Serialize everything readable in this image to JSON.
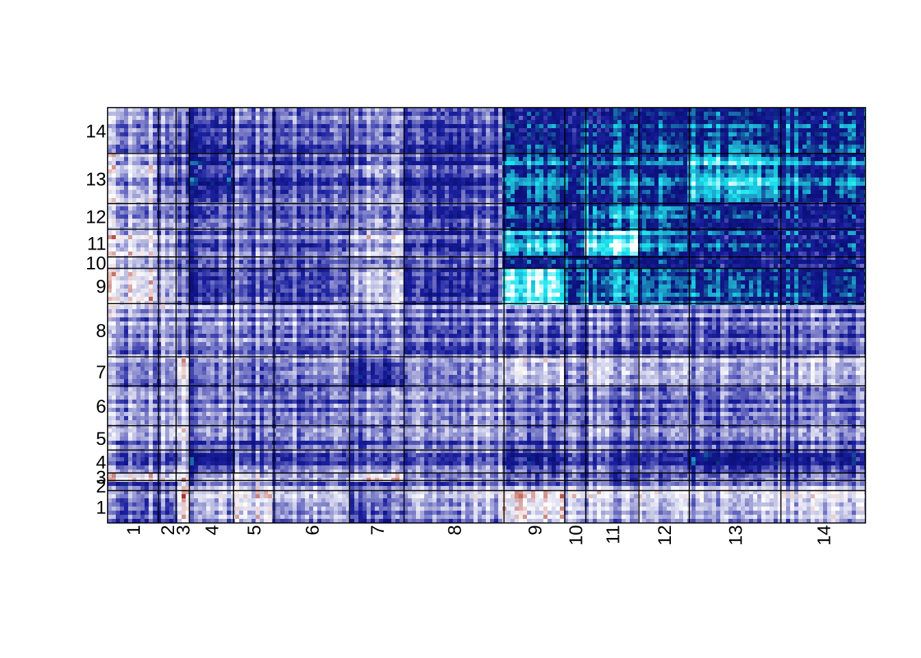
{
  "chart_data": {
    "type": "heatmap",
    "title": "",
    "xlabel": "",
    "ylabel": "",
    "grid": false,
    "legend": "none",
    "column_clusters": [
      "1",
      "2",
      "3",
      "4",
      "5",
      "6",
      "7",
      "8",
      "9",
      "10",
      "11",
      "12",
      "13",
      "14"
    ],
    "row_clusters": [
      "1",
      "2",
      "3",
      "4",
      "5",
      "6",
      "7",
      "8",
      "9",
      "10",
      "11",
      "12",
      "13",
      "14"
    ],
    "cluster_sizes": [
      73,
      25,
      19,
      63,
      58,
      108,
      78,
      143,
      87,
      30,
      76,
      72,
      131,
      121
    ],
    "row_cluster_sizes": [
      48,
      15,
      11,
      34,
      36,
      59,
      43,
      79,
      52,
      17,
      41,
      38,
      74,
      68
    ],
    "colors": {
      "white": "#ffffff",
      "light": "#cfd0ea",
      "mid": "#7072c4",
      "dark": "#1a1f9e",
      "navy": "#0a0f78",
      "teal": "#1fa0c8",
      "cyan": "#19e6f0",
      "red": "#a8322a",
      "border": "#000000"
    },
    "block_means": [
      [
        0.05,
        0.05,
        -0.55,
        -0.15,
        -0.3,
        -0.15,
        0.05,
        -0.15,
        -0.4,
        -0.25,
        -0.2,
        -0.25,
        -0.15,
        -0.2
      ],
      [
        0.1,
        0.1,
        -0.45,
        -0.1,
        -0.2,
        -0.1,
        0.05,
        -0.1,
        -0.1,
        -0.15,
        -0.1,
        -0.15,
        -0.1,
        -0.1
      ],
      [
        -0.5,
        -0.4,
        -0.6,
        -0.2,
        -0.35,
        -0.25,
        -0.5,
        -0.2,
        -0.1,
        -0.1,
        -0.05,
        -0.1,
        -0.1,
        -0.1
      ],
      [
        0.0,
        0.0,
        -0.3,
        0.2,
        0.0,
        0.0,
        0.0,
        -0.05,
        0.15,
        0.0,
        0.05,
        0.05,
        0.25,
        0.2
      ],
      [
        -0.05,
        -0.1,
        -0.35,
        0.05,
        0.1,
        0.0,
        0.05,
        -0.05,
        0.05,
        0.0,
        0.0,
        0.0,
        0.05,
        0.05
      ],
      [
        -0.1,
        -0.1,
        -0.3,
        0.0,
        0.0,
        0.0,
        -0.05,
        -0.1,
        0.0,
        0.0,
        0.0,
        0.0,
        0.05,
        0.05
      ],
      [
        -0.05,
        -0.05,
        -0.5,
        0.0,
        0.05,
        -0.05,
        0.2,
        -0.1,
        -0.25,
        -0.1,
        -0.2,
        -0.2,
        -0.1,
        -0.15
      ],
      [
        -0.1,
        -0.15,
        -0.15,
        -0.05,
        -0.05,
        -0.05,
        -0.05,
        0.0,
        0.0,
        0.0,
        0.0,
        0.0,
        0.05,
        0.05
      ],
      [
        -0.45,
        -0.3,
        -0.2,
        0.1,
        0.0,
        0.0,
        -0.3,
        0.05,
        0.85,
        0.4,
        0.55,
        0.45,
        0.45,
        0.4
      ],
      [
        -0.2,
        -0.1,
        -0.05,
        0.05,
        0.0,
        0.0,
        -0.1,
        0.0,
        0.4,
        0.5,
        0.4,
        0.35,
        0.3,
        0.3
      ],
      [
        -0.35,
        -0.2,
        -0.1,
        0.05,
        -0.05,
        0.0,
        -0.25,
        0.05,
        0.7,
        0.35,
        0.9,
        0.55,
        0.4,
        0.35
      ],
      [
        -0.15,
        -0.1,
        -0.1,
        0.05,
        0.0,
        0.0,
        -0.1,
        0.05,
        0.45,
        0.3,
        0.6,
        0.5,
        0.4,
        0.35
      ],
      [
        -0.2,
        0.0,
        -0.05,
        0.25,
        0.05,
        0.05,
        -0.05,
        0.1,
        0.55,
        0.4,
        0.5,
        0.45,
        0.75,
        0.55
      ],
      [
        -0.05,
        0.0,
        -0.05,
        0.2,
        0.05,
        0.05,
        0.0,
        0.1,
        0.4,
        0.35,
        0.45,
        0.45,
        0.55,
        0.55
      ]
    ]
  }
}
